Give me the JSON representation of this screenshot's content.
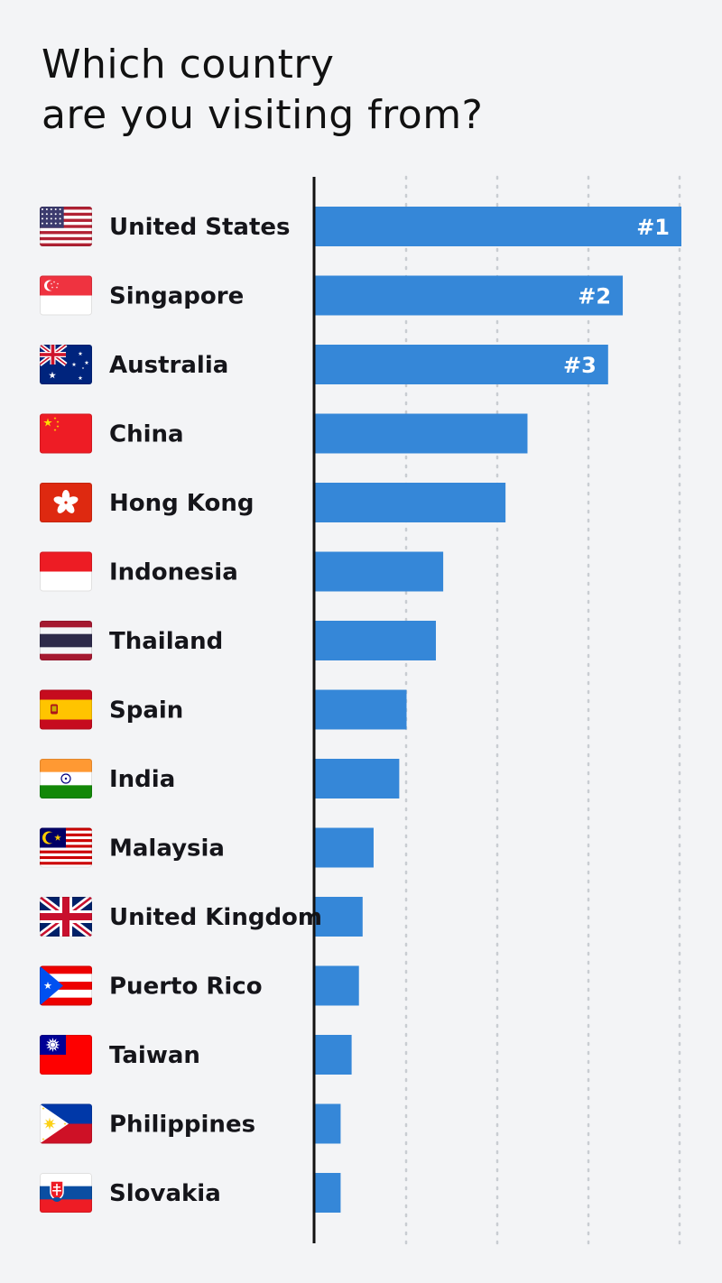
{
  "title_lines": [
    "Which country",
    "are you visiting from?"
  ],
  "colors": {
    "bar": "#3587d8",
    "background": "#f3f4f6",
    "axis": "#111111",
    "grid": "#c9cdd2"
  },
  "chart_data": {
    "type": "bar",
    "orientation": "horizontal",
    "title": "Which country are you visiting from?",
    "xlabel": "",
    "ylabel": "",
    "xlim": [
      0,
      100
    ],
    "grid": true,
    "categories": [
      "United States",
      "Singapore",
      "Australia",
      "China",
      "Hong Kong",
      "Indonesia",
      "Thailand",
      "Spain",
      "India",
      "Malaysia",
      "United Kingdom",
      "Puerto Rico",
      "Taiwan",
      "Philippines",
      "Slovakia"
    ],
    "values": [
      100,
      84,
      80,
      58,
      52,
      35,
      33,
      25,
      23,
      16,
      13,
      12,
      10,
      7,
      7
    ],
    "flag_icons": [
      "flag-united-states-icon",
      "flag-singapore-icon",
      "flag-australia-icon",
      "flag-china-icon",
      "flag-hong-kong-icon",
      "flag-indonesia-icon",
      "flag-thailand-icon",
      "flag-spain-icon",
      "flag-india-icon",
      "flag-malaysia-icon",
      "flag-united-kingdom-icon",
      "flag-puerto-rico-icon",
      "flag-taiwan-icon",
      "flag-philippines-icon",
      "flag-slovakia-icon"
    ],
    "annotations": [
      "#1",
      "#2",
      "#3"
    ]
  }
}
